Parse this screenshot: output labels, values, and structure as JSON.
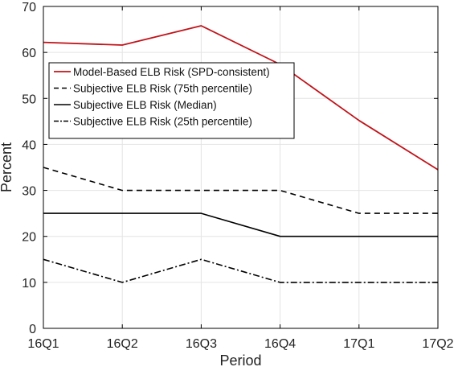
{
  "chart_data": {
    "type": "line",
    "title": "",
    "xlabel": "Period",
    "ylabel": "Percent",
    "categories": [
      "16Q1",
      "16Q2",
      "16Q3",
      "16Q4",
      "17Q1",
      "17Q2"
    ],
    "ylim": [
      0,
      70
    ],
    "yticks": [
      0,
      10,
      20,
      30,
      40,
      50,
      60,
      70
    ],
    "grid": true,
    "legend_position": "upper-left",
    "series": [
      {
        "name": "Model-Based ELB Risk (SPD-consistent)",
        "values": [
          62.2,
          61.6,
          65.8,
          57.4,
          45.2,
          34.5
        ],
        "color": "#c0141a",
        "dash": "solid"
      },
      {
        "name": "Subjective ELB Risk (75th percentile)",
        "values": [
          35,
          30,
          30,
          30,
          25,
          25
        ],
        "color": "#000000",
        "dash": "dashed"
      },
      {
        "name": "Subjective ELB Risk (Median)",
        "values": [
          25,
          25,
          25,
          20,
          20,
          20
        ],
        "color": "#000000",
        "dash": "solid"
      },
      {
        "name": "Subjective ELB Risk (25th percentile)",
        "values": [
          15,
          10,
          15,
          10,
          10,
          10
        ],
        "color": "#000000",
        "dash": "dashdot"
      }
    ]
  }
}
